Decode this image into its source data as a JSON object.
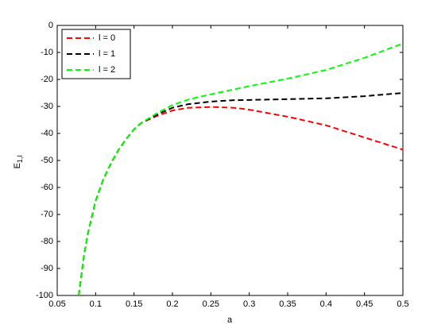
{
  "chart_data": {
    "type": "line",
    "xlabel": "a",
    "ylabel": "E",
    "ylabel_subscript": "1,l",
    "x": [
      0.078,
      0.085,
      0.09,
      0.1,
      0.11,
      0.12,
      0.13,
      0.14,
      0.15,
      0.16,
      0.18,
      0.2,
      0.22,
      0.25,
      0.28,
      0.3,
      0.35,
      0.4,
      0.45,
      0.5
    ],
    "series": [
      {
        "name": "l = 0",
        "color": "#ff0000",
        "values": [
          -100,
          -85,
          -77,
          -65,
          -57,
          -51,
          -46,
          -42,
          -38.5,
          -36,
          -33.5,
          -31.5,
          -30.5,
          -30.2,
          -30.5,
          -31.2,
          -33.8,
          -37,
          -41.5,
          -46
        ]
      },
      {
        "name": "l = 1",
        "color": "#000000",
        "values": [
          -100,
          -85,
          -77,
          -65,
          -57,
          -51,
          -46,
          -42,
          -38.5,
          -36,
          -33,
          -30.5,
          -29.2,
          -28.2,
          -27.7,
          -27.6,
          -27.3,
          -27,
          -26.2,
          -25
        ]
      },
      {
        "name": "l = 2",
        "color": "#00ff00",
        "values": [
          -100,
          -85,
          -77,
          -65,
          -57,
          -51,
          -46,
          -42,
          -38.5,
          -36,
          -32.5,
          -29.5,
          -27.5,
          -25.5,
          -23.7,
          -22.5,
          -19.7,
          -16.5,
          -12,
          -6.7
        ]
      }
    ],
    "xlim": [
      0.05,
      0.5
    ],
    "xticks": [
      0.05,
      0.1,
      0.15,
      0.2,
      0.25,
      0.3,
      0.35,
      0.4,
      0.45,
      0.5
    ],
    "ylim": [
      -100,
      0
    ],
    "yticks": [
      -100,
      -90,
      -80,
      -70,
      -60,
      -50,
      -40,
      -30,
      -20,
      -10,
      0
    ],
    "grid": false,
    "legend": "upper left"
  }
}
